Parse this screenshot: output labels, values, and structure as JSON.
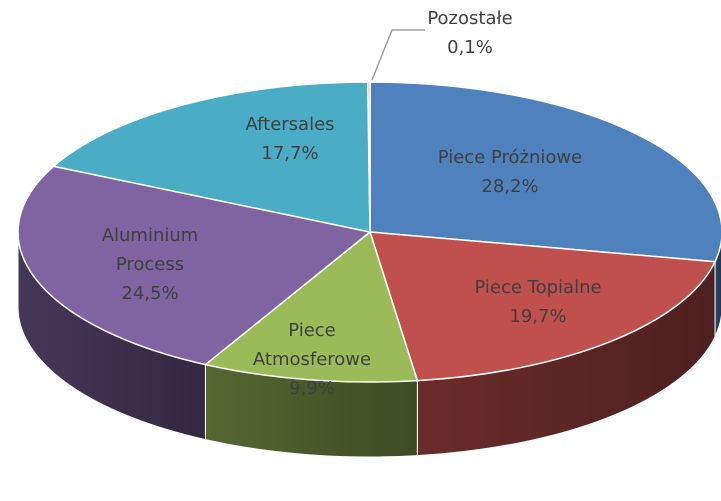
{
  "chart_data": {
    "type": "pie",
    "3d": true,
    "categories": [
      "Piece Próżniowe",
      "Piece Topialne",
      "Piece Atmosferowe",
      "Aluminium Process",
      "Aftersales",
      "Pozostałe"
    ],
    "values": [
      28.2,
      19.7,
      9.9,
      24.5,
      17.7,
      0.1
    ],
    "value_labels": [
      "28,2%",
      "19,7%",
      "9,9%",
      "24,5%",
      "17,7%",
      "0,1%"
    ],
    "colors": [
      "#4f81bd",
      "#c0504d",
      "#9bbb59",
      "#8064a2",
      "#4bacc6",
      "#f79646"
    ]
  }
}
